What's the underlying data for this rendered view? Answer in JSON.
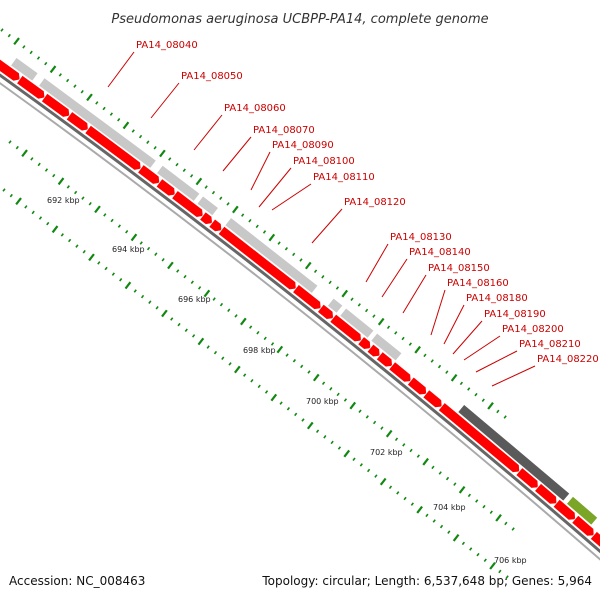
{
  "title": "Pseudomonas aeruginosa UCBPP-PA14, complete genome",
  "footer": {
    "accession": "Accession: NC_008463",
    "topology": "Topology: circular; Length: 6,537,648 bp; Genes: 5,964"
  },
  "colors": {
    "forward_gene": "#ff0000",
    "orf": "#c8c8c8",
    "rna": "#5a5a5a",
    "other": "#7aa526",
    "gc_ticks": "#118811",
    "backbone": "#888888",
    "label": "#cc0000"
  },
  "kbp_labels": [
    "692 kbp",
    "694 kbp",
    "696 kbp",
    "698 kbp",
    "700 kbp",
    "702 kbp",
    "704 kbp",
    "706 kbp"
  ],
  "gene_labels": [
    "PA14_08040",
    "PA14_08050",
    "PA14_08060",
    "PA14_08070",
    "PA14_08090",
    "PA14_08100",
    "PA14_08110",
    "PA14_08120",
    "PA14_08130",
    "PA14_08140",
    "PA14_08150",
    "PA14_08160",
    "PA14_08180",
    "PA14_08190",
    "PA14_08200",
    "PA14_08210",
    "PA14_08220"
  ]
}
